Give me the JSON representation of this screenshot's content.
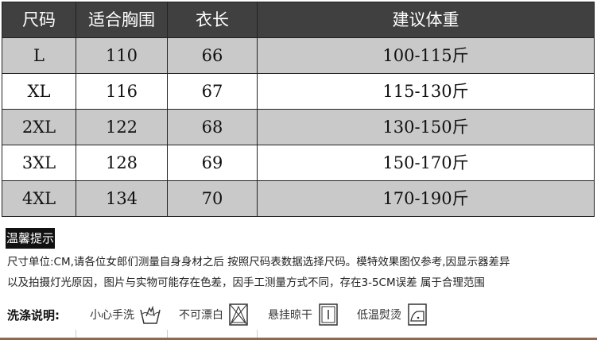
{
  "table": {
    "headers": [
      "尺码",
      "适合胸围",
      "衣长",
      "建议体重"
    ],
    "rows": [
      [
        "L",
        "110",
        "66",
        "100-115斤"
      ],
      [
        "XL",
        "116",
        "67",
        "115-130斤"
      ],
      [
        "2XL",
        "122",
        "68",
        "130-150斤"
      ],
      [
        "3XL",
        "128",
        "69",
        "150-170斤"
      ],
      [
        "4XL",
        "134",
        "70",
        "170-190斤"
      ]
    ]
  },
  "tips": {
    "label": "温馨提示",
    "line1": "尺寸单位:CM,请各位女郎们测量自身身材之后 按照尺码表数据选择尺码。模特效果图仅参考,因显示器差异",
    "line2": "以及拍摄灯光原因，图片与实物可能存在色差，因手工测量方式不同，存在3-5CM误差 属于合理范围"
  },
  "wash": {
    "title": "洗涤说明:",
    "items": [
      {
        "label": "小心手洗",
        "icon": "hand-wash-icon"
      },
      {
        "label": "不可漂白",
        "icon": "no-bleach-icon"
      },
      {
        "label": "悬挂晾干",
        "icon": "hang-dry-icon"
      },
      {
        "label": "低温熨烫",
        "icon": "low-iron-icon"
      }
    ]
  },
  "colors": {
    "header_bg": "#404040",
    "stripe": "#c9c9c9"
  }
}
